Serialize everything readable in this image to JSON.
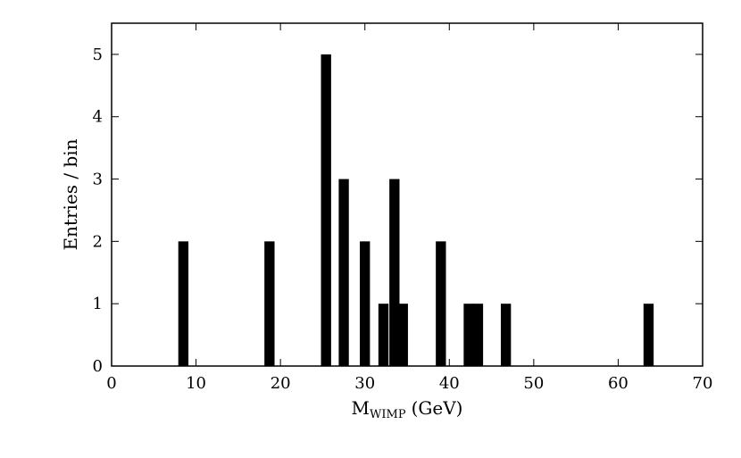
{
  "chart_data": {
    "type": "bar",
    "title": "",
    "xlabel": "M",
    "xlabel_subscript": "WIMP",
    "xlabel_unit": "(GeV)",
    "ylabel": "Entries / bin",
    "xlim": [
      0,
      70
    ],
    "ylim": [
      0,
      5.5
    ],
    "xticks": [
      0,
      10,
      20,
      30,
      40,
      50,
      60,
      70
    ],
    "yticks": [
      0,
      1,
      2,
      3,
      4,
      5
    ],
    "grid": false,
    "bar_width": 1.2,
    "bar_color": "#000000",
    "bars": [
      {
        "x": 8.5,
        "y": 2
      },
      {
        "x": 18.7,
        "y": 2
      },
      {
        "x": 25.4,
        "y": 5
      },
      {
        "x": 27.5,
        "y": 3
      },
      {
        "x": 30.0,
        "y": 2
      },
      {
        "x": 32.2,
        "y": 1
      },
      {
        "x": 33.5,
        "y": 3
      },
      {
        "x": 34.5,
        "y": 1
      },
      {
        "x": 39.0,
        "y": 2
      },
      {
        "x": 42.3,
        "y": 1
      },
      {
        "x": 43.4,
        "y": 1
      },
      {
        "x": 46.7,
        "y": 1
      },
      {
        "x": 63.6,
        "y": 1
      }
    ]
  }
}
